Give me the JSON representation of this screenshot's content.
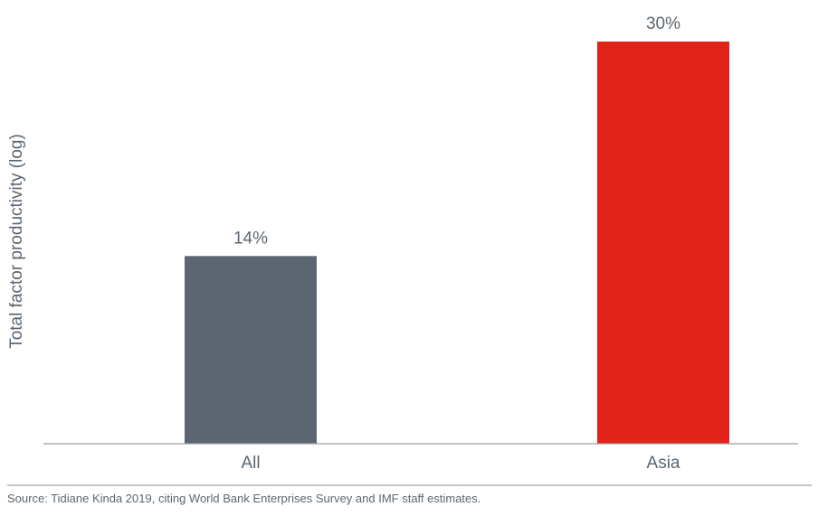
{
  "chart_data": {
    "type": "bar",
    "categories": [
      "All",
      "Asia"
    ],
    "values": [
      14,
      30
    ],
    "data_labels": [
      "14%",
      "30%"
    ],
    "ylabel": "Total factor productivity (log)",
    "xlabel": "",
    "title": "",
    "ylim": [
      0,
      30
    ],
    "grid": false,
    "legend": "none",
    "bar_colors": [
      "#5b6670",
      "#e2231a"
    ],
    "axis_color": "#9a9ea3",
    "text_color": "#5b6670"
  },
  "source_note": "Source: Tidiane Kinda 2019, citing World Bank Enterprises Survey and IMF staff estimates."
}
